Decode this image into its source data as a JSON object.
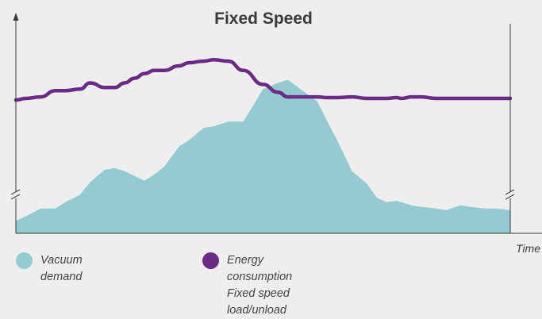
{
  "chart_data": {
    "type": "area",
    "title": "Fixed Speed",
    "xlabel": "Time",
    "ylabel": "",
    "x": [
      0,
      2,
      5,
      8,
      10,
      13,
      15,
      18,
      20,
      22,
      24,
      26,
      28,
      30,
      33,
      35,
      38,
      40,
      43,
      46,
      50,
      53,
      55,
      58,
      61,
      63,
      65,
      68,
      71,
      73,
      75,
      77,
      78,
      80,
      82,
      85,
      87,
      90,
      92,
      95,
      97,
      100
    ],
    "series": [
      {
        "name": "Vacuum demand",
        "style": "filled-area",
        "color": "#93cbd0",
        "values": [
          0.8,
          1.1,
          1.6,
          1.6,
          2.0,
          2.5,
          3.3,
          4.1,
          4.2,
          4.0,
          3.7,
          3.4,
          3.8,
          4.3,
          5.6,
          6.0,
          6.8,
          6.9,
          7.2,
          7.2,
          9.3,
          9.7,
          9.9,
          9.2,
          8.5,
          7.2,
          6.0,
          4.0,
          3.2,
          2.3,
          2.0,
          2.1,
          2.0,
          1.8,
          1.7,
          1.6,
          1.5,
          1.8,
          1.7,
          1.6,
          1.6,
          1.5
        ]
      },
      {
        "name": "Energy consumption Fixed speed load/unload",
        "style": "line",
        "color": "#6a2a86",
        "values": [
          8.6,
          8.7,
          8.8,
          9.2,
          9.2,
          9.3,
          9.7,
          9.4,
          9.4,
          9.7,
          10.0,
          10.3,
          10.5,
          10.5,
          10.8,
          11.0,
          11.1,
          11.2,
          11.1,
          10.5,
          9.6,
          9.1,
          8.8,
          8.8,
          8.8,
          8.75,
          8.75,
          8.8,
          8.7,
          8.7,
          8.7,
          8.75,
          8.7,
          8.8,
          8.8,
          8.7,
          8.7,
          8.7,
          8.7,
          8.7,
          8.7,
          8.7
        ]
      }
    ],
    "ylim": [
      0,
      13
    ],
    "axis_break": true,
    "grid": false,
    "legend_position": "bottom"
  },
  "legend": {
    "items": [
      {
        "lines": [
          "Vacuum demand"
        ],
        "color": "#93cbd0",
        "icon": "teal-dot"
      },
      {
        "lines": [
          "Energy consumption",
          "Fixed speed load/unload"
        ],
        "color": "#6a2a86",
        "icon": "purple-dot"
      }
    ]
  },
  "colors": {
    "axis": "#3a3a3a",
    "background": "#eeeeee"
  }
}
